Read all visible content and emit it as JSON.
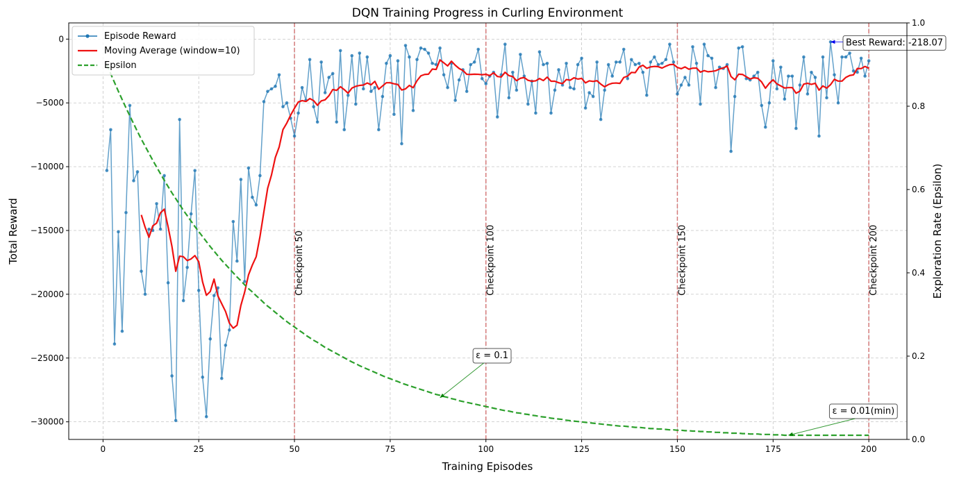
{
  "chart_data": {
    "type": "line",
    "title": "DQN Training Progress in Curling Environment",
    "xlabel": "Training Episodes",
    "ylabel": "Total Reward",
    "y2label": "Exploration Rate (Epsilon)",
    "xlim": [
      -8.95,
      209.95
    ],
    "ylim": [
      -31380,
      1270
    ],
    "y2lim": [
      0,
      1
    ],
    "xticks": [
      0,
      25,
      50,
      75,
      100,
      125,
      150,
      175,
      200
    ],
    "yticks": [
      0,
      {
        "value": -5000,
        "label": "−5000"
      },
      {
        "value": -10000,
        "label": "−10000"
      },
      {
        "value": -15000,
        "label": "−15000"
      },
      {
        "value": -20000,
        "label": "−20000"
      },
      {
        "value": -25000,
        "label": "−25000"
      },
      {
        "value": -30000,
        "label": "−30000"
      }
    ],
    "y2ticks": [
      {
        "value": 0,
        "label": "0.0"
      },
      0.2,
      0.4,
      0.6,
      0.8,
      {
        "value": 1,
        "label": "1.0"
      }
    ],
    "grid": true,
    "legend": "upper left",
    "x": [
      1,
      2,
      3,
      4,
      5,
      6,
      7,
      8,
      9,
      10,
      11,
      12,
      13,
      14,
      15,
      16,
      17,
      18,
      19,
      20,
      21,
      22,
      23,
      24,
      25,
      26,
      27,
      28,
      29,
      30,
      31,
      32,
      33,
      34,
      35,
      36,
      37,
      38,
      39,
      40,
      41,
      42,
      43,
      44,
      45,
      46,
      47,
      48,
      49,
      50,
      51,
      52,
      53,
      54,
      55,
      56,
      57,
      58,
      59,
      60,
      61,
      62,
      63,
      64,
      65,
      66,
      67,
      68,
      69,
      70,
      71,
      72,
      73,
      74,
      75,
      76,
      77,
      78,
      79,
      80,
      81,
      82,
      83,
      84,
      85,
      86,
      87,
      88,
      89,
      90,
      91,
      92,
      93,
      94,
      95,
      96,
      97,
      98,
      99,
      100,
      101,
      102,
      103,
      104,
      105,
      106,
      107,
      108,
      109,
      110,
      111,
      112,
      113,
      114,
      115,
      116,
      117,
      118,
      119,
      120,
      121,
      122,
      123,
      124,
      125,
      126,
      127,
      128,
      129,
      130,
      131,
      132,
      133,
      134,
      135,
      136,
      137,
      138,
      139,
      140,
      141,
      142,
      143,
      144,
      145,
      146,
      147,
      148,
      149,
      150,
      151,
      152,
      153,
      154,
      155,
      156,
      157,
      158,
      159,
      160,
      161,
      162,
      163,
      164,
      165,
      166,
      167,
      168,
      169,
      170,
      171,
      172,
      173,
      174,
      175,
      176,
      177,
      178,
      179,
      180,
      181,
      182,
      183,
      184,
      185,
      186,
      187,
      188,
      189,
      190,
      191,
      192,
      193,
      194,
      195,
      196,
      197,
      198,
      199,
      200
    ],
    "series": [
      {
        "name": "Episode Reward",
        "color": "#1f77b4",
        "markers": true,
        "linestyle": "solid",
        "values": [
          -10300,
          -7100,
          -23900,
          -15100,
          -22900,
          -13600,
          -5200,
          -11100,
          -10400,
          -18200,
          -20000,
          -14900,
          -15000,
          -12900,
          -14900,
          -10700,
          -19100,
          -26400,
          -29900,
          -6300,
          -20500,
          -17900,
          -13700,
          -10300,
          -19700,
          -26500,
          -29600,
          -23500,
          -20100,
          -19500,
          -26600,
          -24000,
          -22800,
          -14300,
          -17400,
          -11000,
          -19000,
          -10100,
          -12400,
          -13000,
          -10700,
          -4900,
          -4100,
          -3900,
          -3700,
          -2800,
          -5300,
          -5000,
          -6200,
          -7600,
          -5800,
          -3800,
          -4800,
          -1600,
          -5300,
          -6500,
          -1800,
          -4200,
          -3000,
          -2700,
          -6500,
          -900,
          -7100,
          -4400,
          -1300,
          -5100,
          -1100,
          -3900,
          -1400,
          -4100,
          -3800,
          -7100,
          -4500,
          -1900,
          -1300,
          -5900,
          -1700,
          -8200,
          -500,
          -1400,
          -5600,
          -1600,
          -700,
          -800,
          -1100,
          -1900,
          -2000,
          -700,
          -2800,
          -3800,
          -1900,
          -4800,
          -3200,
          -2400,
          -4100,
          -2000,
          -1800,
          -800,
          -3100,
          -3500,
          -2900,
          -2600,
          -6100,
          -2800,
          -400,
          -4600,
          -2600,
          -4000,
          -1200,
          -2900,
          -5100,
          -3300,
          -5800,
          -1000,
          -2000,
          -1900,
          -5800,
          -4000,
          -2400,
          -3600,
          -1900,
          -3800,
          -3900,
          -2000,
          -1500,
          -5400,
          -4200,
          -4500,
          -1800,
          -6300,
          -4000,
          -2000,
          -2900,
          -1800,
          -1800,
          -800,
          -3100,
          -1600,
          -2000,
          -1900,
          -2600,
          -4400,
          -1800,
          -1400,
          -2000,
          -1900,
          -1600,
          -400,
          -1800,
          -4300,
          -3600,
          -3000,
          -3600,
          -600,
          -1900,
          -5100,
          -400,
          -1300,
          -1500,
          -3800,
          -2200,
          -2300,
          -2000,
          -8800,
          -4500,
          -700,
          -600,
          -3100,
          -3200,
          -2900,
          -2600,
          -5200,
          -6900,
          -5000,
          -1700,
          -3900,
          -2200,
          -4700,
          -2900,
          -2900,
          -7000,
          -3600,
          -1400,
          -4300,
          -2600,
          -3000,
          -7600,
          -1400,
          -4600,
          -218.07,
          -2800,
          -5000,
          -1400,
          -1400,
          -1100,
          -2500,
          -2600,
          -1500,
          -2900,
          -1700
        ]
      },
      {
        "name": "Moving Average (window=10)",
        "color": "#ee1111",
        "markers": false,
        "linestyle": "solid",
        "values": [
          null,
          null,
          null,
          null,
          null,
          null,
          null,
          null,
          null,
          -13780,
          -14750,
          -15530,
          -14640,
          -14420,
          -13620,
          -13330,
          -14720,
          -16250,
          -18200,
          -17010,
          -17060,
          -17360,
          -17230,
          -16970,
          -17450,
          -19030,
          -20080,
          -19790,
          -18810,
          -20130,
          -20740,
          -21350,
          -22260,
          -22660,
          -22430,
          -20880,
          -19820,
          -18480,
          -17710,
          -17060,
          -15470,
          -13560,
          -11690,
          -10650,
          -9280,
          -8460,
          -7090,
          -6580,
          -5960,
          -5420,
          -4930,
          -4820,
          -4890,
          -4660,
          -4820,
          -5190,
          -4840,
          -4760,
          -4440,
          -3950,
          -4020,
          -3730,
          -3960,
          -4240,
          -3840,
          -3700,
          -3630,
          -3600,
          -3440,
          -3580,
          -3310,
          -3930,
          -3670,
          -3420,
          -3420,
          -3500,
          -3560,
          -3990,
          -3900,
          -3630,
          -3810,
          -3260,
          -2880,
          -2770,
          -2750,
          -2350,
          -2380,
          -1630,
          -1860,
          -2100,
          -1730,
          -2050,
          -2300,
          -2460,
          -2760,
          -2770,
          -2750,
          -2760,
          -2790,
          -2760,
          -2860,
          -2640,
          -2930,
          -2970,
          -2600,
          -2860,
          -2940,
          -3260,
          -3070,
          -3010,
          -3230,
          -3300,
          -3270,
          -3090,
          -3250,
          -2980,
          -3300,
          -3300,
          -3420,
          -3490,
          -3170,
          -3220,
          -3030,
          -3130,
          -3080,
          -3430,
          -3270,
          -3320,
          -3260,
          -3530,
          -3740,
          -3560,
          -3460,
          -3440,
          -3470,
          -3010,
          -2900,
          -2610,
          -2630,
          -2190,
          -2050,
          -2290,
          -2180,
          -2140,
          -2160,
          -2270,
          -2120,
          -2000,
          -1980,
          -2220,
          -2320,
          -2180,
          -2360,
          -2280,
          -2270,
          -2590,
          -2470,
          -2560,
          -2530,
          -2480,
          -2340,
          -2270,
          -2110,
          -2930,
          -3190,
          -2750,
          -2770,
          -2950,
          -3120,
          -3030,
          -3070,
          -3360,
          -3850,
          -3470,
          -3190,
          -3510,
          -3670,
          -3830,
          -3800,
          -3800,
          -4240,
          -4080,
          -3530,
          -3460,
          -3550,
          -3460,
          -4000,
          -3670,
          -3840,
          -3572,
          -3152,
          -3292,
          -3292,
          -3002,
          -2852,
          -2802,
          -2302,
          -2312,
          -2142,
          -2290
        ]
      },
      {
        "name": "Epsilon",
        "color": "#2ca02c",
        "markers": false,
        "linestyle": "dashed",
        "axis": "y2",
        "values": [
          0.9,
          0.878,
          0.857,
          0.836,
          0.816,
          0.796,
          0.777,
          0.758,
          0.739,
          0.721,
          0.704,
          0.687,
          0.67,
          0.654,
          0.638,
          0.622,
          0.607,
          0.592,
          0.578,
          0.564,
          0.55,
          0.537,
          0.524,
          0.511,
          0.499,
          0.487,
          0.475,
          0.463,
          0.452,
          0.441,
          0.43,
          0.42,
          0.41,
          0.4,
          0.39,
          0.381,
          0.371,
          0.362,
          0.354,
          0.345,
          0.337,
          0.328,
          0.32,
          0.313,
          0.305,
          0.298,
          0.29,
          0.283,
          0.276,
          0.27,
          0.263,
          0.257,
          0.25,
          0.244,
          0.238,
          0.233,
          0.227,
          0.221,
          0.216,
          0.211,
          0.206,
          0.201,
          0.196,
          0.191,
          0.186,
          0.182,
          0.177,
          0.173,
          0.169,
          0.165,
          0.161,
          0.157,
          0.153,
          0.149,
          0.146,
          0.142,
          0.139,
          0.135,
          0.132,
          0.129,
          0.126,
          0.123,
          0.12,
          0.117,
          0.114,
          0.111,
          0.108,
          0.106,
          0.103,
          0.101,
          0.098,
          0.096,
          0.093,
          0.091,
          0.089,
          0.087,
          0.085,
          0.083,
          0.081,
          0.079,
          0.077,
          0.075,
          0.073,
          0.071,
          0.069,
          0.068,
          0.066,
          0.064,
          0.063,
          0.061,
          0.06,
          0.058,
          0.057,
          0.055,
          0.054,
          0.053,
          0.051,
          0.05,
          0.049,
          0.048,
          0.046,
          0.045,
          0.044,
          0.043,
          0.042,
          0.041,
          0.04,
          0.039,
          0.038,
          0.037,
          0.036,
          0.035,
          0.034,
          0.033,
          0.032,
          0.032,
          0.031,
          0.03,
          0.029,
          0.029,
          0.028,
          0.027,
          0.026,
          0.026,
          0.025,
          0.025,
          0.024,
          0.023,
          0.023,
          0.022,
          0.022,
          0.021,
          0.021,
          0.02,
          0.02,
          0.019,
          0.019,
          0.018,
          0.018,
          0.017,
          0.017,
          0.016,
          0.016,
          0.015,
          0.015,
          0.015,
          0.014,
          0.014,
          0.013,
          0.013,
          0.013,
          0.012,
          0.012,
          0.012,
          0.011,
          0.011,
          0.011,
          0.01,
          0.01,
          0.01,
          0.01,
          0.01,
          0.01,
          0.01,
          0.01,
          0.01,
          0.01,
          0.01,
          0.01,
          0.01,
          0.01,
          0.01,
          0.01,
          0.01,
          0.01,
          0.01,
          0.01,
          0.01,
          0.01,
          0.01
        ]
      }
    ],
    "checkpoints": [
      {
        "x": 50,
        "label": "Checkpoint 50"
      },
      {
        "x": 100,
        "label": "Checkpoint 100"
      },
      {
        "x": 150,
        "label": "Checkpoint 150"
      },
      {
        "x": 200,
        "label": "Checkpoint 200"
      }
    ],
    "checkpoint_color": "#d47a7a",
    "annotations": [
      {
        "text": "Best Reward: -218.07",
        "x": 190,
        "y": -218.07,
        "axis": "y",
        "color": "#0000ee"
      },
      {
        "text": "ε = 0.1",
        "x": 88,
        "y": 0.1,
        "axis": "y2",
        "color": "#008000"
      },
      {
        "text": "ε = 0.01(min)",
        "x": 179,
        "y": 0.01,
        "axis": "y2",
        "color": "#008000"
      }
    ]
  }
}
